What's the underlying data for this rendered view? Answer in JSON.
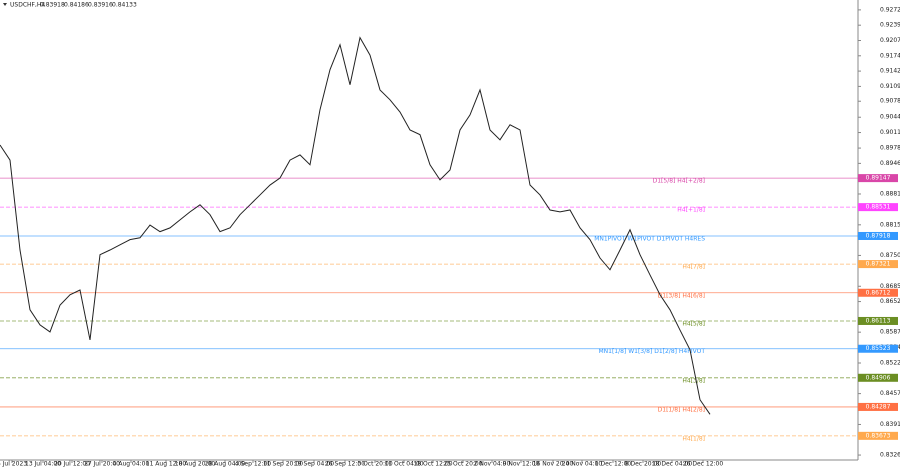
{
  "chart_data": {
    "type": "line",
    "symbol": "USDCHF,H4",
    "ohlc": [
      0.83918,
      0.84186,
      0.83916,
      0.84133
    ],
    "series": [
      {
        "name": "USDCHF",
        "color": "#222222",
        "values": [
          0.8985,
          0.8953,
          0.8762,
          0.8635,
          0.8603,
          0.8588,
          0.8645,
          0.8667,
          0.8677,
          0.8571,
          0.8752,
          0.8762,
          0.8773,
          0.8784,
          0.8788,
          0.8815,
          0.8801,
          0.8809,
          0.8826,
          0.8843,
          0.8858,
          0.8837,
          0.8801,
          0.8809,
          0.8837,
          0.8858,
          0.8879,
          0.89,
          0.8915,
          0.8953,
          0.8964,
          0.8943,
          0.906,
          0.9145,
          0.9198,
          0.9113,
          0.9213,
          0.9176,
          0.9102,
          0.9081,
          0.9055,
          0.9017,
          0.9007,
          0.8943,
          0.8911,
          0.8932,
          0.9017,
          0.9049,
          0.9102,
          0.9017,
          0.8996,
          0.9028,
          0.9017,
          0.89,
          0.8879,
          0.8847,
          0.8843,
          0.8847,
          0.8809,
          0.8784,
          0.8745,
          0.872,
          0.8762,
          0.8805,
          0.8752,
          0.8709,
          0.8667,
          0.8635,
          0.8592,
          0.855,
          0.8444,
          0.8413
        ]
      }
    ],
    "xlim": [
      0,
      85.8
    ],
    "xticks": [
      {
        "value": 1.2,
        "label": "5 Jul 2023"
      },
      {
        "value": 4.3,
        "label": "13 Jul 04:00"
      },
      {
        "value": 7.2,
        "label": "20 Jul 12:00"
      },
      {
        "value": 10.2,
        "label": "27 Jul 20:00"
      },
      {
        "value": 13.1,
        "label": "4 Aug 04:00"
      },
      {
        "value": 16.6,
        "label": "11 Aug 12:00"
      },
      {
        "value": 19.5,
        "label": "18 Aug 20:00"
      },
      {
        "value": 22.5,
        "label": "28 Aug 04:00"
      },
      {
        "value": 25.3,
        "label": "4 Sep 12:00"
      },
      {
        "value": 28.3,
        "label": "11 Sep 20:00"
      },
      {
        "value": 31.4,
        "label": "19 Sep 04:00"
      },
      {
        "value": 34.5,
        "label": "26 Sep 12:00"
      },
      {
        "value": 37.5,
        "label": "3 Oct 20:00"
      },
      {
        "value": 40.4,
        "label": "11 Oct 04:00"
      },
      {
        "value": 43.3,
        "label": "18 Oct 12:00"
      },
      {
        "value": 46.3,
        "label": "25 Oct 20:00"
      },
      {
        "value": 49.2,
        "label": "2 Nov 04:00"
      },
      {
        "value": 52.1,
        "label": "9 Nov 12:00"
      },
      {
        "value": 55.3,
        "label": "16 Nov 20:00"
      },
      {
        "value": 58.2,
        "label": "24 Nov 04:00"
      },
      {
        "value": 61.3,
        "label": "1 Dec 12:00"
      },
      {
        "value": 64.3,
        "label": "8 Dec 20:00"
      },
      {
        "value": 67.2,
        "label": "18 Dec 04:00"
      },
      {
        "value": 70.3,
        "label": "26 Dec 12:00"
      }
    ],
    "ylim": [
      0.8316,
      0.9293
    ],
    "yticks": [
      {
        "value": 0.9272,
        "label": "0.92720"
      },
      {
        "value": 0.92395,
        "label": "0.92395"
      },
      {
        "value": 0.9207,
        "label": "0.92070"
      },
      {
        "value": 0.91745,
        "label": "0.91745"
      },
      {
        "value": 0.9142,
        "label": "0.91420"
      },
      {
        "value": 0.91095,
        "label": "0.91095"
      },
      {
        "value": 0.9078,
        "label": "0.90780"
      },
      {
        "value": 0.9044,
        "label": "0.90440"
      },
      {
        "value": 0.90115,
        "label": "0.90115"
      },
      {
        "value": 0.89785,
        "label": "0.89785"
      },
      {
        "value": 0.8946,
        "label": "0.89460"
      },
      {
        "value": 0.8881,
        "label": "0.88810"
      },
      {
        "value": 0.88155,
        "label": "0.88155"
      },
      {
        "value": 0.87505,
        "label": "0.87505"
      },
      {
        "value": 0.8685,
        "label": "0.86850"
      },
      {
        "value": 0.86525,
        "label": "0.86525"
      },
      {
        "value": 0.85875,
        "label": "0.85875"
      },
      {
        "value": 0.85545,
        "label": "0.85545"
      },
      {
        "value": 0.8522,
        "label": "0.85220"
      },
      {
        "value": 0.8457,
        "label": "0.84570"
      },
      {
        "value": 0.83915,
        "label": "0.83915"
      },
      {
        "value": 0.83265,
        "label": "0.83265"
      }
    ],
    "levels": [
      {
        "label": "D1[5/8] H4[+2/8]",
        "price": 0.89147,
        "color": "#d946a8",
        "dashed": false
      },
      {
        "label": "H4[+1/8]",
        "price": 0.88531,
        "color": "#ff44ff",
        "dashed": true
      },
      {
        "label": "MN1PIVOT W1PIVOT D1PIVOT H4RES",
        "price": 0.87918,
        "color": "#3399ff",
        "dashed": false
      },
      {
        "label": "H4[7/8]",
        "price": 0.87321,
        "color": "#ffa94d",
        "dashed": true
      },
      {
        "label": "D1[3/8] H4[6/8]",
        "price": 0.86712,
        "color": "#ff7043",
        "dashed": false
      },
      {
        "label": "H4[5/8]",
        "price": 0.86113,
        "color": "#6b8e23",
        "dashed": true
      },
      {
        "label": "MN1[1/8] W1[3/8] D1[2/8] H4PIVOT",
        "price": 0.85523,
        "color": "#3399ff",
        "dashed": false
      },
      {
        "label": "H4[3/8]",
        "price": 0.84906,
        "color": "#6b8e23",
        "dashed": true
      },
      {
        "label": "D1[1/8] H4[2/8]",
        "price": 0.84287,
        "color": "#ff7043",
        "dashed": false
      },
      {
        "label": "H4[1/8]",
        "price": 0.83673,
        "color": "#ffa94d",
        "dashed": true
      }
    ]
  }
}
